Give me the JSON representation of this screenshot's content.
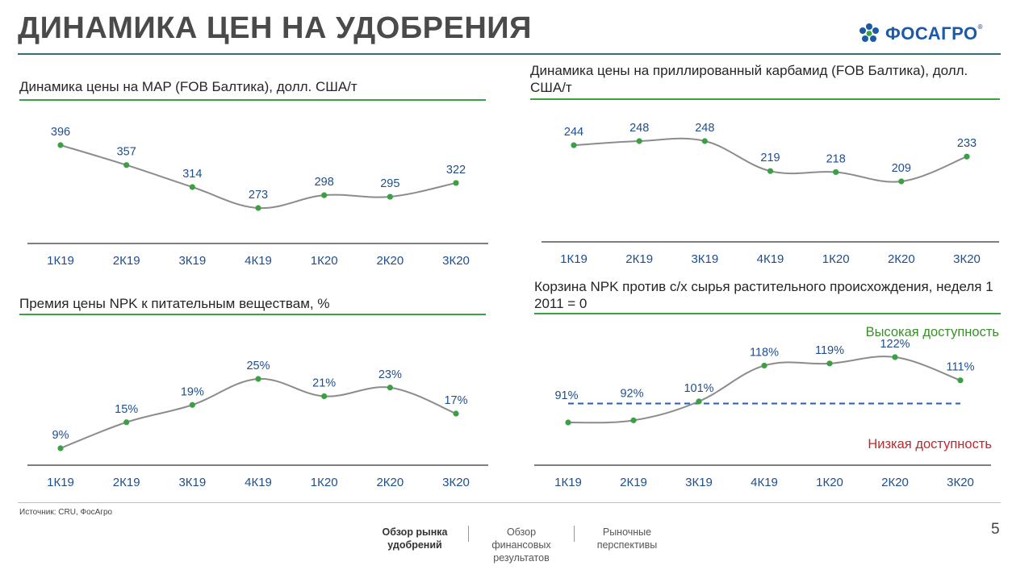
{
  "header": {
    "title": "ДИНАМИКА ЦЕН НА УДОБРЕНИЯ",
    "logo_text": "ФОСАГРО",
    "logo_reg": "®"
  },
  "colors": {
    "line": "#8c8c8c",
    "dot": "#3aa043",
    "label": "#1f4e8c",
    "accent_green": "#3aa043",
    "dash": "#2a5ea8"
  },
  "panels": {
    "map": {
      "title": "Динамика цены на MAP (FOB Балтика), долл. США/т"
    },
    "urea": {
      "title": "Динамика цены на приллированный карбамид (FOB Балтика), долл. США/т"
    },
    "npk_premium": {
      "title": "Премия цены NPK к питательным веществам, %"
    },
    "npk_basket": {
      "title": "Корзина NPK против с/х сырья растительного происхождения, неделя 1 2011 = 0"
    }
  },
  "chart_data": [
    {
      "id": "map",
      "type": "line",
      "title": "Динамика цены на MAP (FOB Балтика), долл. США/т",
      "categories": [
        "1К19",
        "2К19",
        "3К19",
        "4К19",
        "1К20",
        "2К20",
        "3К20"
      ],
      "values": [
        396,
        357,
        314,
        273,
        298,
        295,
        322
      ],
      "labels": [
        "396",
        "357",
        "314",
        "273",
        "298",
        "295",
        "322"
      ],
      "ylim": [
        200,
        420
      ]
    },
    {
      "id": "urea",
      "type": "line",
      "title": "Динамика цены на приллированный карбамид (FOB Балтика), долл. США/т",
      "categories": [
        "1К19",
        "2К19",
        "3К19",
        "4К19",
        "1К20",
        "2К20",
        "3К20"
      ],
      "values": [
        244,
        248,
        248,
        219,
        218,
        209,
        233
      ],
      "labels": [
        "244",
        "248",
        "248",
        "219",
        "218",
        "209",
        "233"
      ],
      "ylim": [
        150,
        270
      ]
    },
    {
      "id": "npk_premium",
      "type": "line",
      "title": "Премия цены NPK к питательным веществам, %",
      "categories": [
        "1К19",
        "2К19",
        "3К19",
        "4К19",
        "1К20",
        "2К20",
        "3К20"
      ],
      "values": [
        9,
        15,
        19,
        25,
        21,
        23,
        17
      ],
      "labels": [
        "9%",
        "15%",
        "19%",
        "25%",
        "21%",
        "23%",
        "17%"
      ],
      "ylim": [
        0,
        30
      ]
    },
    {
      "id": "npk_basket",
      "type": "line",
      "title": "Корзина NPK против с/х сырья растительного происхождения, неделя 1 2011 = 0",
      "categories": [
        "1К19",
        "2К19",
        "3К19",
        "4К19",
        "1К20",
        "2К20",
        "3К20"
      ],
      "values": [
        91,
        92,
        101,
        118,
        119,
        122,
        111
      ],
      "labels": [
        "91%",
        "92%",
        "101%",
        "118%",
        "119%",
        "122%",
        "111%"
      ],
      "reference_line": 100,
      "zone_high_label": "Высокая доступность",
      "zone_low_label": "Низкая доступность",
      "ylim": [
        60,
        140
      ]
    }
  ],
  "footer": {
    "source": "Источник: CRU, ФосАгро",
    "nav": [
      "Обзор рынка удобрений",
      "Обзор финансовых результатов",
      "Рыночные перспективы"
    ],
    "page_number": "5"
  }
}
